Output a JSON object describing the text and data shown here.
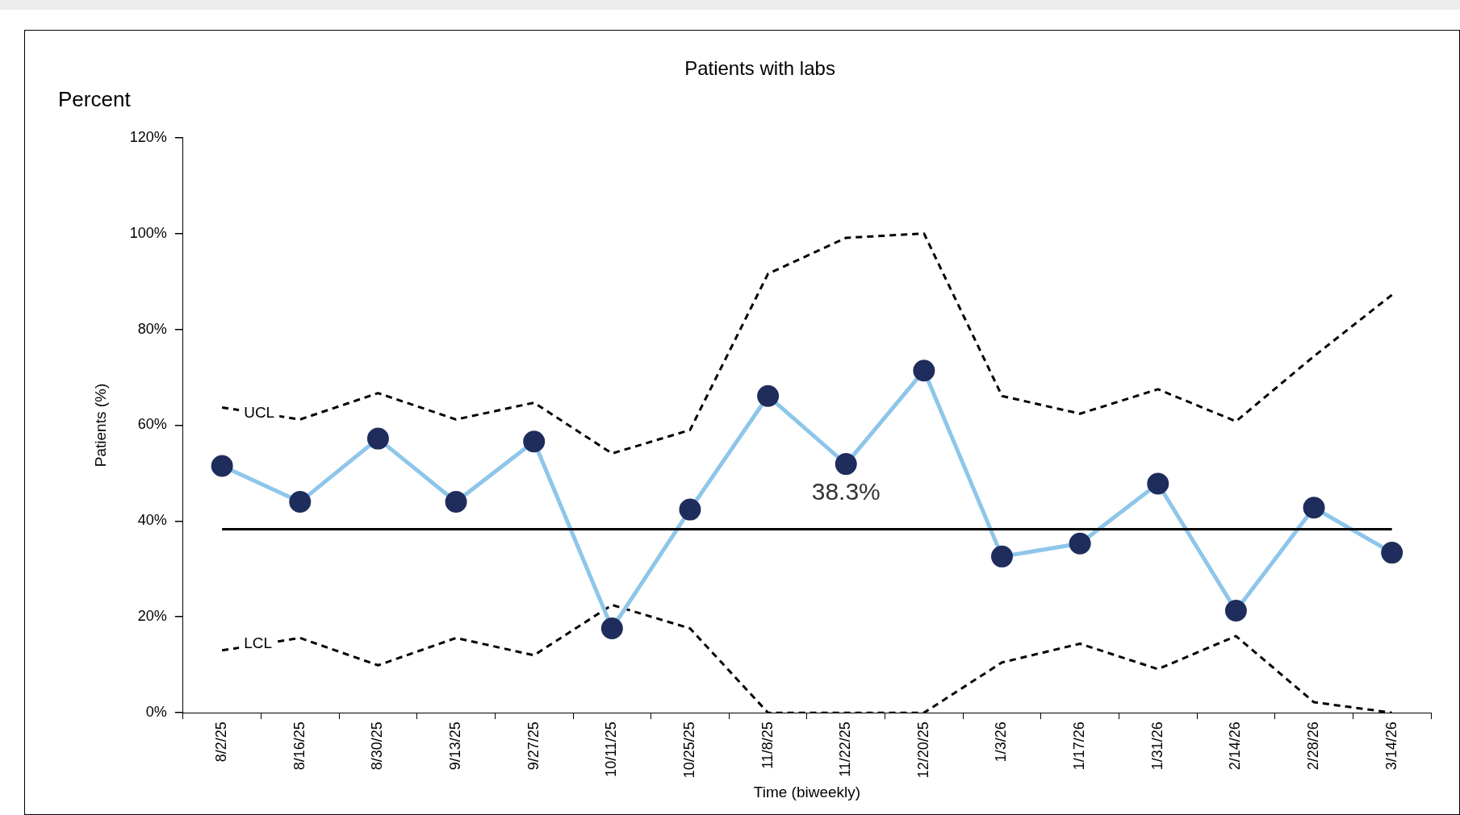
{
  "chart_data": {
    "type": "line",
    "title": "Patients with labs",
    "xlabel": "Time (biweekly)",
    "ylabel": "Patients (%)",
    "annotations": [
      "Percent"
    ],
    "categories": [
      "8/2/25",
      "8/16/25",
      "8/30/25",
      "9/13/25",
      "9/27/25",
      "10/11/25",
      "10/25/25",
      "11/8/25",
      "11/22/25",
      "12/20/25",
      "1/3/26",
      "1/17/26",
      "1/31/26",
      "2/14/26",
      "2/28/26",
      "3/14/26"
    ],
    "series": [
      {
        "color": "#8ec6ea",
        "colors": [
          "#1f2d5c",
          "#1f2d5c",
          "#1f2d5c",
          "#1f2d5c",
          "#1f2d5c",
          "#1f2d5c",
          "#1f2d5c",
          "#1f2d5c",
          "#1f2d5c",
          "#1f2d5c",
          "#1f2d5c",
          "#1f2d5c",
          "#1f2d5c",
          "#1f2d5c",
          "#1f2d5c",
          "#1f2d5c"
        ],
        "marker": "circle",
        "line_style": "solid",
        "values": [
          51.5,
          44,
          57.2,
          44,
          56.6,
          17.6,
          42.4,
          66.1,
          51.9,
          71.4,
          32.6,
          35.3,
          47.8,
          21.3,
          42.8,
          33.4
        ]
      },
      {
        "name": "UCL",
        "color": "#000000",
        "marker": "none",
        "line_style": "dashed",
        "values": [
          63.7,
          61.2,
          66.7,
          61.2,
          64.7,
          54.1,
          59,
          91.6,
          99.1,
          100,
          66.1,
          62.4,
          67.5,
          60.8,
          74.4,
          87.2
        ]
      },
      {
        "name": "LCL",
        "color": "#000000",
        "marker": "none",
        "line_style": "dashed",
        "values": [
          13,
          15.6,
          9.9,
          15.6,
          12,
          22.5,
          17.6,
          0,
          0,
          0,
          10.5,
          14.4,
          9.1,
          16,
          2.2,
          0
        ]
      }
    ],
    "ref_lines": [
      {
        "axis": "y",
        "value": 38.3,
        "label": "38.3%",
        "color": "#000000",
        "line_style": "solid"
      }
    ],
    "ylim": [
      0,
      120
    ],
    "yticks": [
      {
        "value": 0,
        "label": "0%"
      },
      {
        "value": 20,
        "label": "20%"
      },
      {
        "value": 40,
        "label": "40%"
      },
      {
        "value": 60,
        "label": "60%"
      },
      {
        "value": 80,
        "label": "80%"
      },
      {
        "value": 100,
        "label": "100%"
      },
      {
        "value": 120,
        "label": "120%"
      }
    ],
    "grid": false,
    "legend": false
  }
}
